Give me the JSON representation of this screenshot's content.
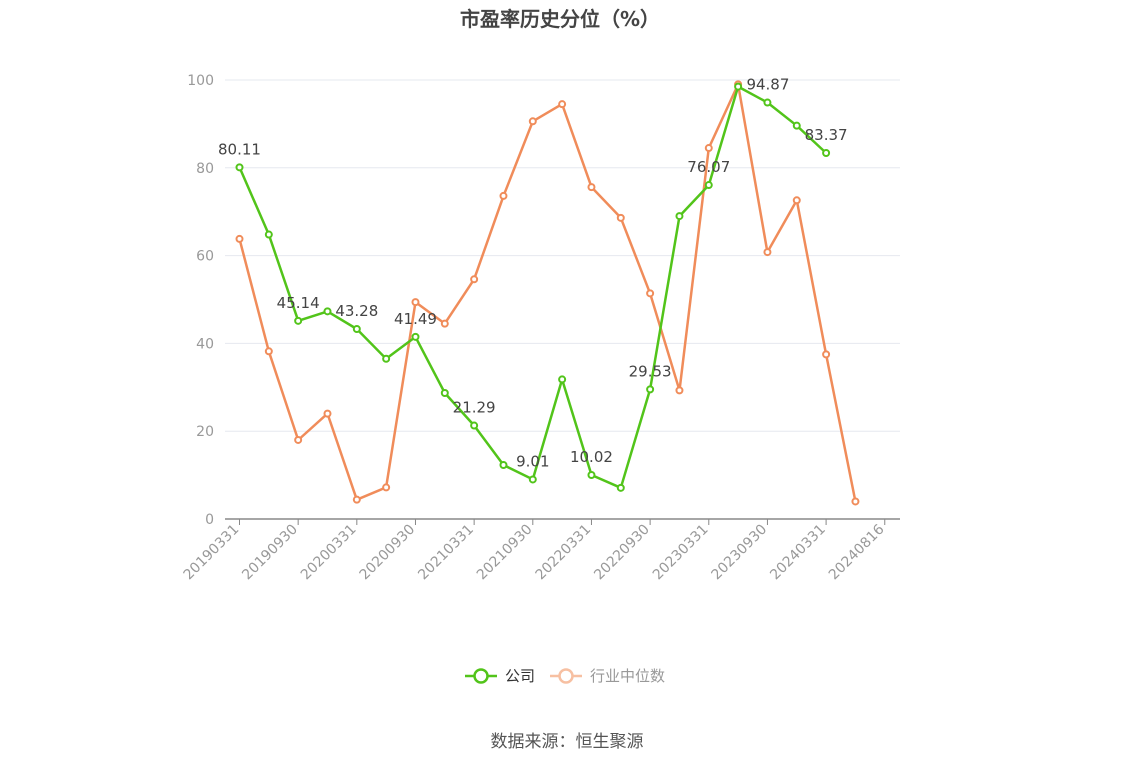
{
  "chart_data": {
    "type": "line",
    "title": "市盈率历史分位（%）",
    "ylim": [
      0,
      100
    ],
    "yticks": [
      0,
      20,
      40,
      60,
      80,
      100
    ],
    "x_tick_labels": [
      "20190331",
      "20190930",
      "20200331",
      "20200930",
      "20210331",
      "20210930",
      "20220331",
      "20220930",
      "20230331",
      "20230930",
      "20240331",
      "20240816"
    ],
    "grid": true,
    "legend_position": "bottom-center",
    "series": [
      {
        "name": "公司",
        "color": "#52c41a",
        "values": [
          80.11,
          64.8,
          45.14,
          47.3,
          43.28,
          36.5,
          41.49,
          28.7,
          21.29,
          12.3,
          9.01,
          31.8,
          10.02,
          7.1,
          29.53,
          69.0,
          76.07,
          98.5,
          94.87,
          89.6,
          83.37
        ]
      },
      {
        "name": "行业中位数",
        "color": "#f08c5a",
        "values": [
          63.8,
          38.2,
          18.0,
          24.0,
          4.4,
          7.2,
          49.4,
          44.5,
          54.6,
          73.6,
          90.6,
          94.5,
          75.6,
          68.6,
          51.4,
          29.3,
          84.5,
          99.0,
          60.8,
          72.6,
          37.5,
          4.0
        ]
      }
    ],
    "data_labels": [
      {
        "series": 0,
        "index": 0,
        "text": "80.11"
      },
      {
        "series": 0,
        "index": 2,
        "text": "45.14"
      },
      {
        "series": 0,
        "index": 4,
        "text": "43.28"
      },
      {
        "series": 0,
        "index": 6,
        "text": "41.49"
      },
      {
        "series": 0,
        "index": 8,
        "text": "21.29"
      },
      {
        "series": 0,
        "index": 10,
        "text": "9.01"
      },
      {
        "series": 0,
        "index": 12,
        "text": "10.02"
      },
      {
        "series": 0,
        "index": 14,
        "text": "29.53"
      },
      {
        "series": 0,
        "index": 16,
        "text": "76.07"
      },
      {
        "series": 0,
        "index": 18,
        "text": "94.87"
      },
      {
        "series": 0,
        "index": 20,
        "text": "83.37"
      }
    ]
  },
  "source_text": "数据来源：恒生聚源"
}
